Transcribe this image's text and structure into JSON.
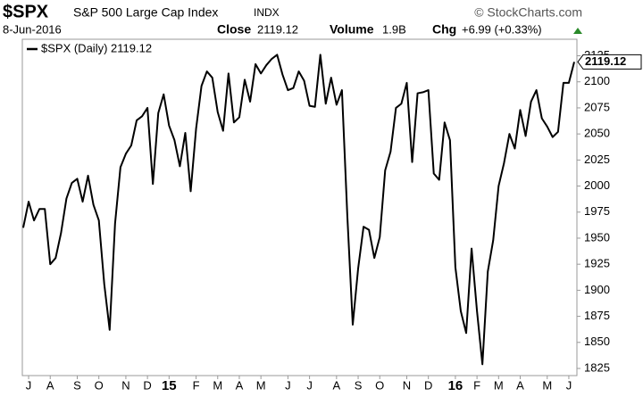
{
  "chart_data": {
    "type": "line",
    "symbol": "$SPX",
    "title": "S&P 500 Large Cap Index",
    "exchange": "INDX",
    "source": "© StockCharts.com",
    "date": "8-Jun-2016",
    "stats": [
      {
        "label": "Close",
        "value": "2119.12"
      },
      {
        "label": "Volume",
        "value": "1.9B"
      },
      {
        "label": "Chg",
        "value": "+6.99 (+0.33%)"
      }
    ],
    "categories": [
      null,
      "J",
      null,
      null,
      null,
      "A",
      null,
      null,
      null,
      null,
      "S",
      null,
      null,
      null,
      "O",
      null,
      null,
      null,
      null,
      "N",
      null,
      null,
      null,
      "D",
      null,
      null,
      null,
      "15",
      null,
      null,
      null,
      null,
      "F",
      null,
      null,
      null,
      "M",
      null,
      null,
      null,
      "A",
      null,
      null,
      null,
      "M",
      null,
      null,
      null,
      null,
      "J",
      null,
      null,
      null,
      "J",
      null,
      null,
      null,
      null,
      "A",
      null,
      null,
      null,
      "S",
      null,
      null,
      null,
      "O",
      null,
      null,
      null,
      null,
      "N",
      null,
      null,
      null,
      "D",
      null,
      null,
      null,
      null,
      "16",
      null,
      null,
      null,
      "F",
      null,
      null,
      null,
      "M",
      null,
      null,
      null,
      "A",
      null,
      null,
      null,
      null,
      "M",
      null,
      null,
      null,
      "J",
      null
    ],
    "series": [
      {
        "name": "$SPX (Daily) 2119.12",
        "color": "#000000",
        "values": [
          1960,
          1985,
          1967,
          1978,
          1978,
          1925,
          1931,
          1955,
          1988,
          2003,
          2007,
          1985,
          2010,
          1982,
          1967,
          1906,
          1862,
          1964,
          2018,
          2031,
          2039,
          2063,
          2067,
          2075,
          2002,
          2070,
          2088,
          2058,
          2044,
          2019,
          2051,
          1995,
          2055,
          2096,
          2110,
          2104,
          2071,
          2053,
          2108,
          2061,
          2066,
          2102,
          2081,
          2117,
          2108,
          2116,
          2122,
          2126,
          2107,
          2092,
          2094,
          2110,
          2101,
          2077,
          2076,
          2126,
          2079,
          2104,
          2078,
          2092,
          1971,
          1867,
          1921,
          1961,
          1958,
          1931,
          1951,
          2015,
          2033,
          2075,
          2079,
          2099,
          2023,
          2089,
          2090,
          2092,
          2012,
          2006,
          2061,
          2044,
          1922,
          1880,
          1859,
          1940,
          1880,
          1829,
          1918,
          1948,
          2000,
          2022,
          2050,
          2036,
          2073,
          2048,
          2081,
          2092,
          2065,
          2057,
          2047,
          2052,
          2099,
          2099,
          2119.12
        ]
      }
    ],
    "ylim": [
      1819,
      2140
    ],
    "yticks": [
      1825,
      1850,
      1875,
      1900,
      1925,
      1950,
      1975,
      2000,
      2025,
      2050,
      2075,
      2100,
      2125
    ],
    "grid": false,
    "legend": "top-left"
  }
}
